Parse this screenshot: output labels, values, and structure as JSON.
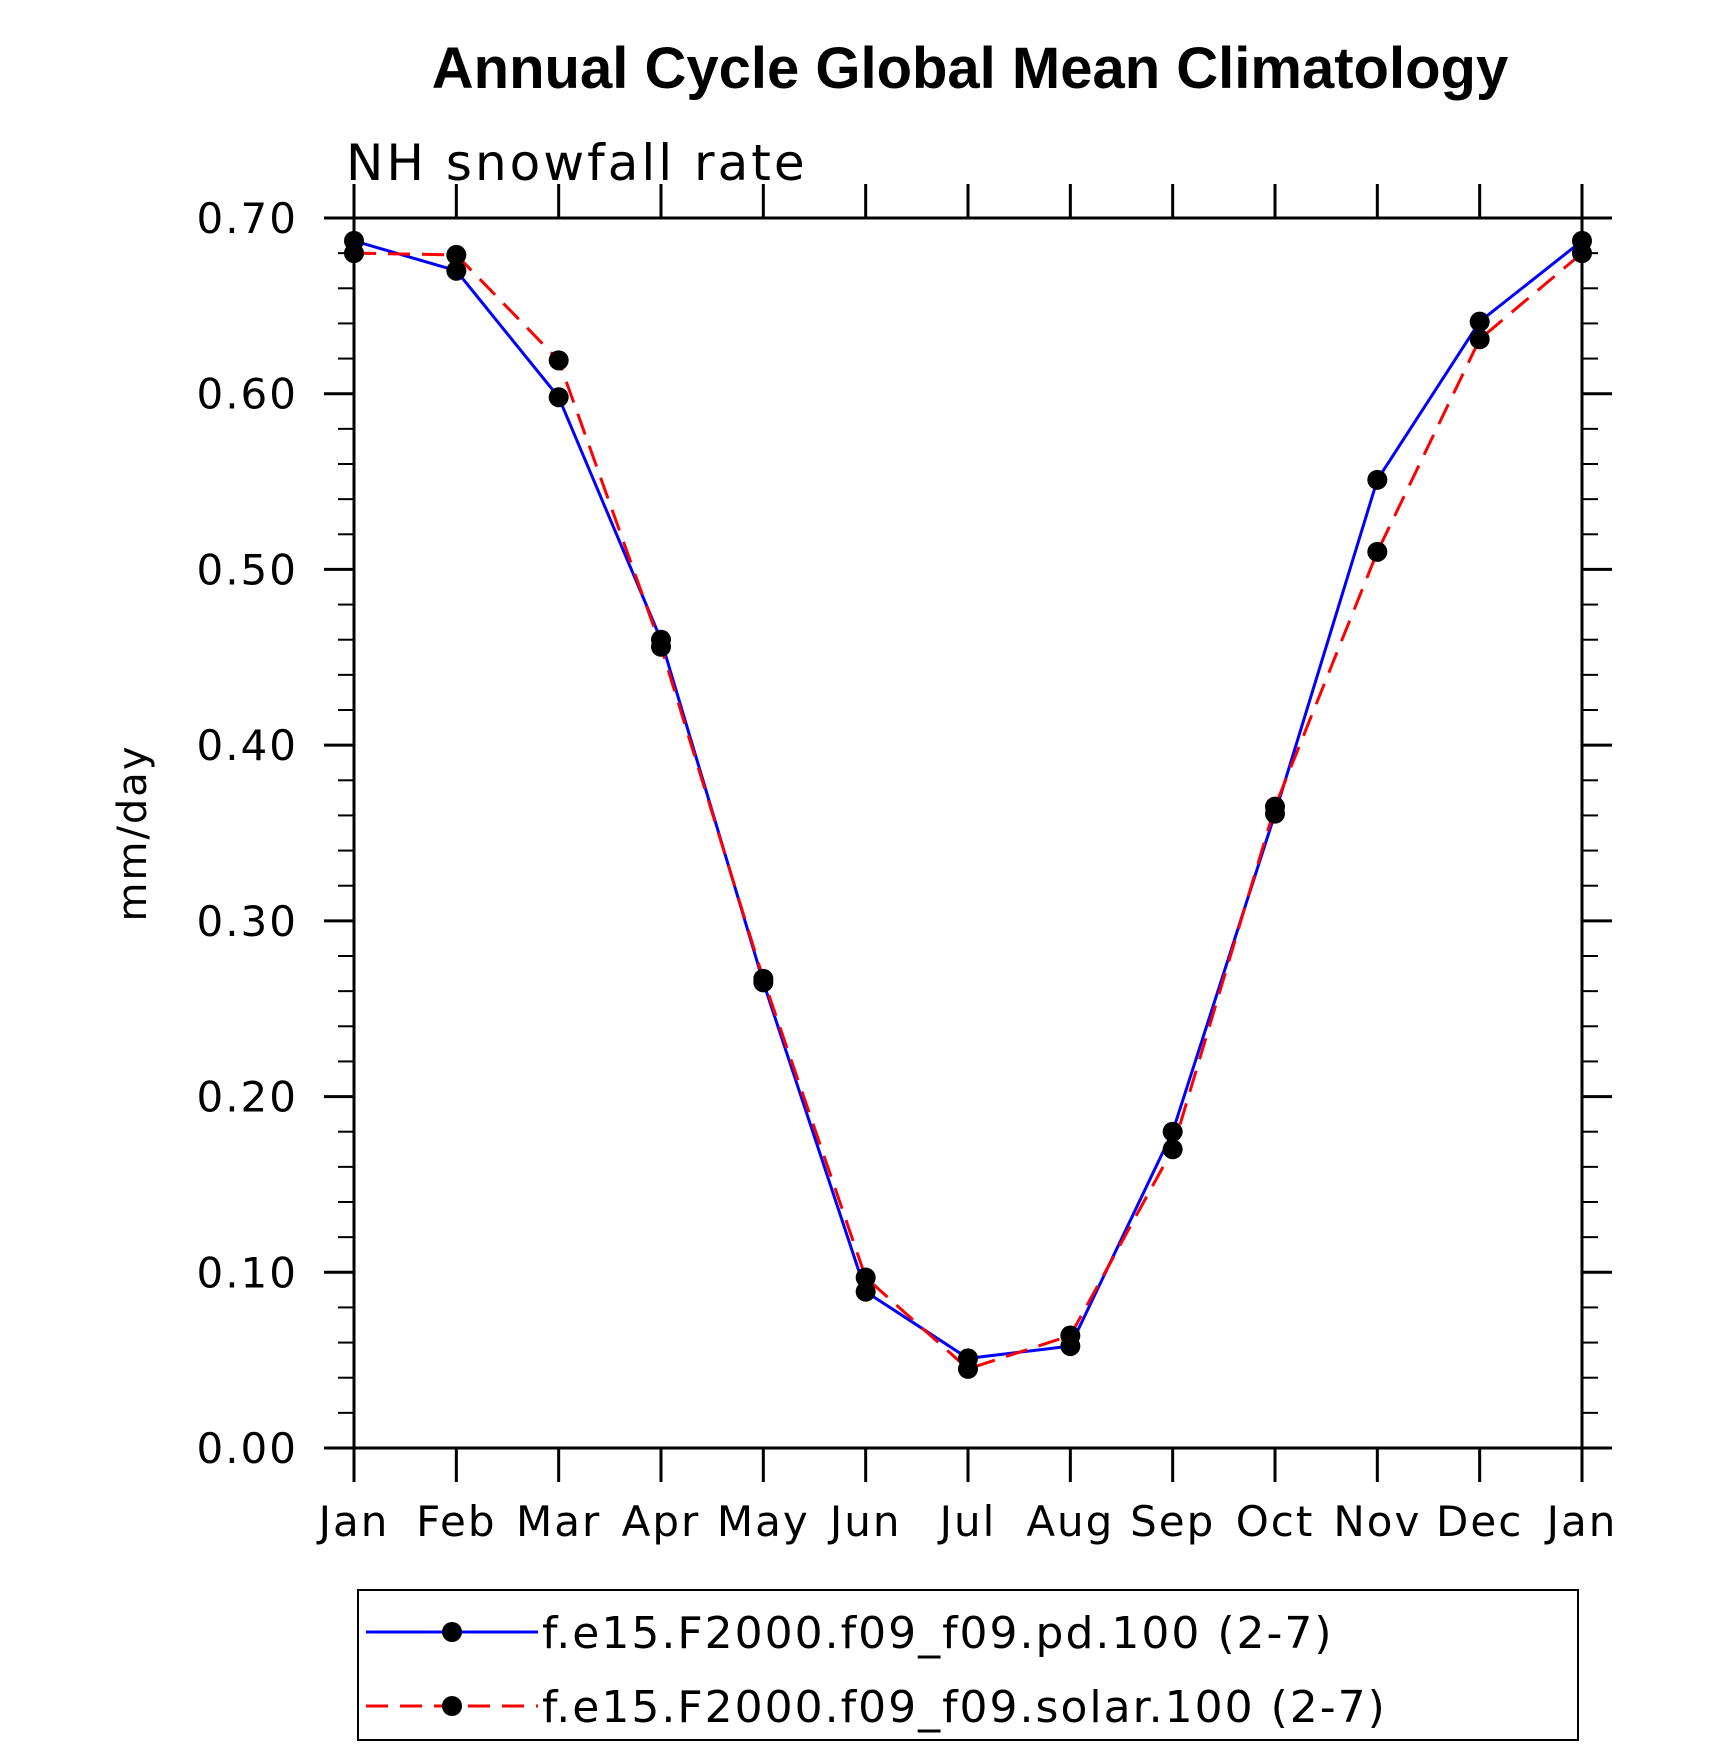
{
  "chart_data": {
    "type": "line",
    "title": "Annual Cycle Global Mean Climatology",
    "subtitle": "NH snowfall rate",
    "xlabel": "",
    "ylabel": "mm/day",
    "categories": [
      "Jan",
      "Feb",
      "Mar",
      "Apr",
      "May",
      "Jun",
      "Jul",
      "Aug",
      "Sep",
      "Oct",
      "Nov",
      "Dec",
      "Jan"
    ],
    "ylim": [
      0.0,
      0.7
    ],
    "yticks": [
      "0.00",
      "0.10",
      "0.20",
      "0.30",
      "0.40",
      "0.50",
      "0.60",
      "0.70"
    ],
    "ytick_values": [
      0.0,
      0.1,
      0.2,
      0.3,
      0.4,
      0.5,
      0.6,
      0.7
    ],
    "grid": false,
    "legend_position": "bottom",
    "series": [
      {
        "name": "f.e15.F2000.f09_f09.pd.100 (2-7)",
        "color": "#0000ff",
        "dash": "solid",
        "values": [
          0.687,
          0.67,
          0.598,
          0.46,
          0.265,
          0.089,
          0.051,
          0.058,
          0.18,
          0.361,
          0.551,
          0.641,
          0.687
        ]
      },
      {
        "name": "f.e15.F2000.f09_f09.solar.100 (2-7)",
        "color": "#ff0000",
        "dash": "dashed",
        "values": [
          0.68,
          0.679,
          0.619,
          0.456,
          0.267,
          0.097,
          0.045,
          0.064,
          0.17,
          0.365,
          0.51,
          0.631,
          0.68
        ]
      }
    ]
  }
}
